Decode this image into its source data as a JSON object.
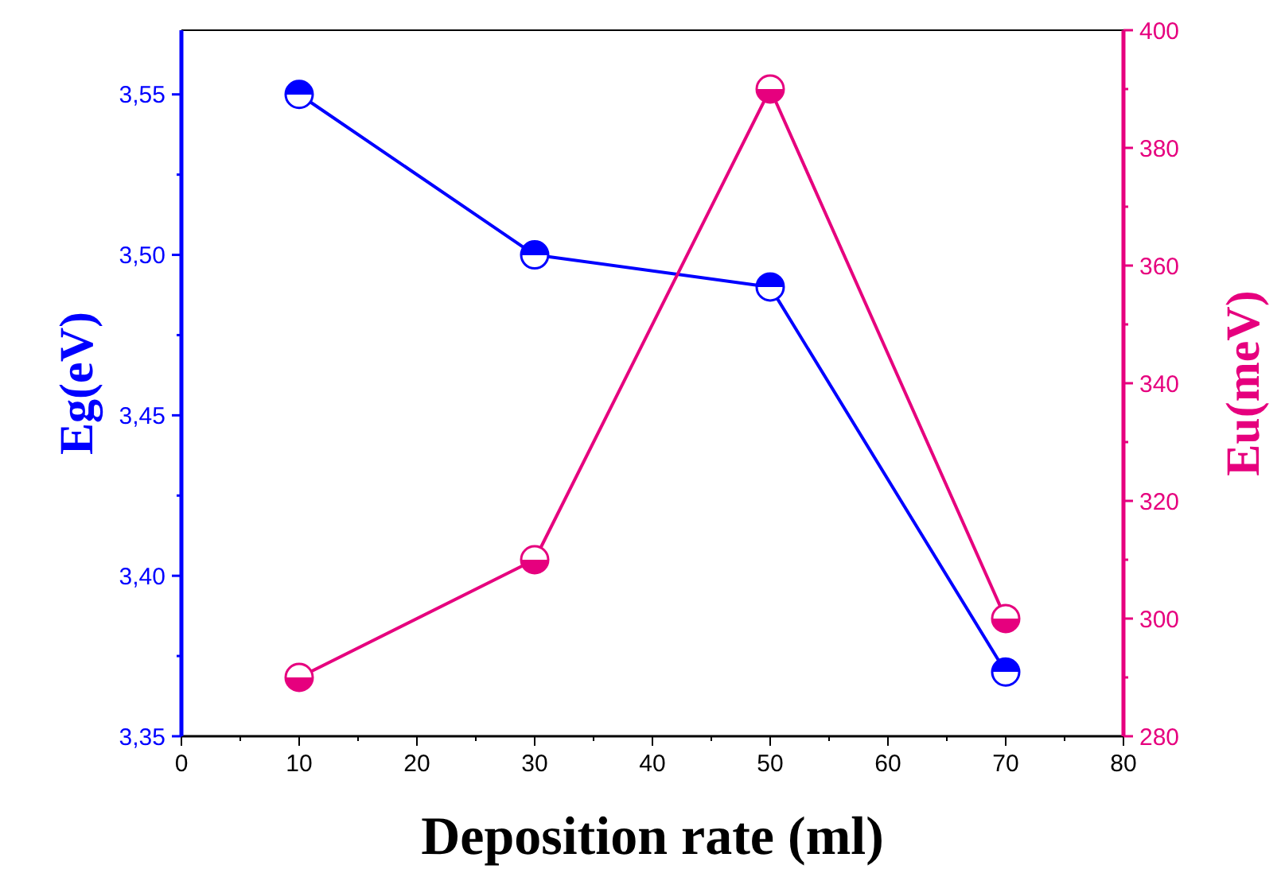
{
  "chart_data": {
    "type": "line",
    "xlabel": "Deposition rate (ml)",
    "ylabel": "Eg(eV)",
    "y2label": "Eu(meV)",
    "x": [
      10,
      30,
      50,
      70
    ],
    "series": [
      {
        "color": "#0000ff",
        "values": [
          3.55,
          3.5,
          3.49,
          3.37
        ]
      },
      {
        "color": "#e6007e",
        "axis": "y2",
        "values": [
          290,
          310,
          390,
          300
        ]
      }
    ],
    "xlim": [
      0,
      80
    ],
    "xticks": [
      0,
      {
        "value": 5,
        "label": null
      },
      10,
      {
        "value": 15,
        "label": null
      },
      20,
      {
        "value": 25,
        "label": null
      },
      30,
      {
        "value": 35,
        "label": null
      },
      40,
      {
        "value": 45,
        "label": null
      },
      50,
      {
        "value": 55,
        "label": null
      },
      60,
      {
        "value": 65,
        "label": null
      },
      70,
      {
        "value": 75,
        "label": null
      },
      80
    ],
    "ylim": [
      3.35,
      3.57
    ],
    "yticks": [
      {
        "value": 3.35,
        "label": "3,35"
      },
      {
        "value": 3.375,
        "label": null
      },
      {
        "value": 3.4,
        "label": "3,40"
      },
      {
        "value": 3.425,
        "label": null
      },
      {
        "value": 3.45,
        "label": "3,45"
      },
      {
        "value": 3.475,
        "label": null
      },
      {
        "value": 3.5,
        "label": "3,50"
      },
      {
        "value": 3.525,
        "label": null
      },
      {
        "value": 3.55,
        "label": "3,55"
      }
    ],
    "y2lim": [
      280,
      400
    ],
    "y2ticks": [
      280,
      {
        "value": 290,
        "label": null
      },
      300,
      {
        "value": 310,
        "label": null
      },
      320,
      {
        "value": 330,
        "label": null
      },
      340,
      {
        "value": 350,
        "label": null
      },
      360,
      {
        "value": 370,
        "label": null
      },
      380,
      {
        "value": 390,
        "label": null
      },
      400
    ],
    "marker": "circle",
    "line_style": "solid",
    "grid": false
  }
}
